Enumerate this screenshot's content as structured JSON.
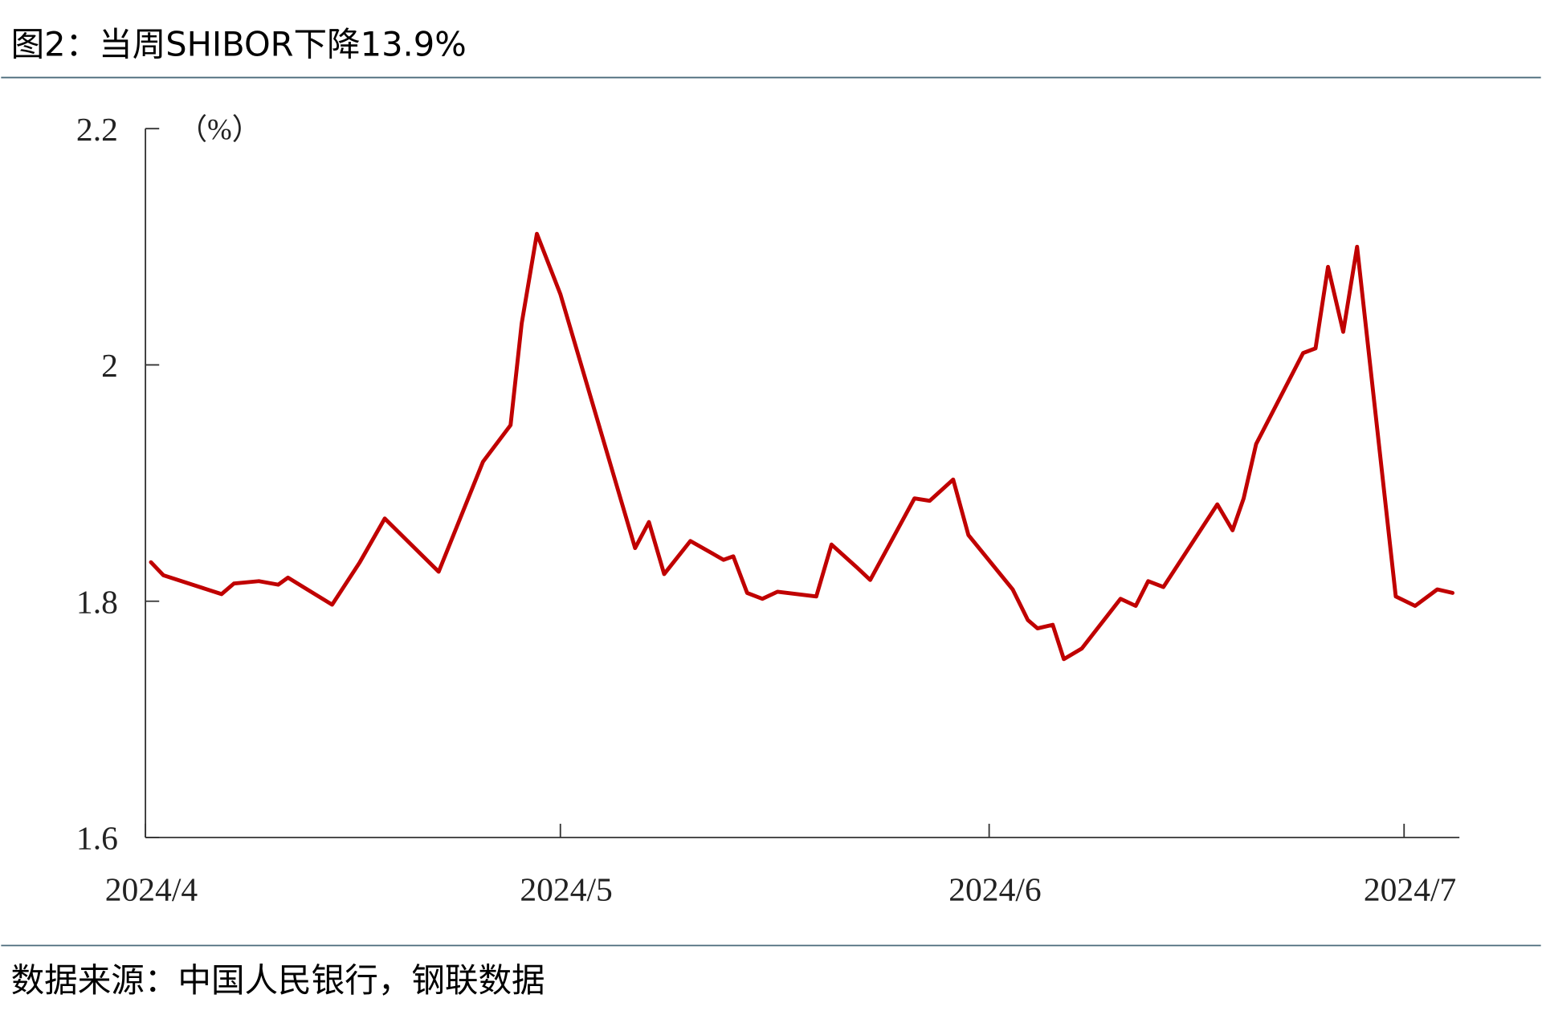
{
  "chart_data": {
    "type": "line",
    "title": "图2：当周SHIBOR下降13.9%",
    "y_label": "（%）",
    "source": "数据来源：中国人民银行，钢联数据",
    "xlim": [
      0,
      95
    ],
    "xticks": [
      {
        "value": 0,
        "label": "2024/4"
      },
      {
        "value": 30,
        "label": "2024/5"
      },
      {
        "value": 61,
        "label": "2024/6"
      },
      {
        "value": 91,
        "label": "2024/7"
      }
    ],
    "ylim": [
      1.6,
      2.2
    ],
    "yticks": [
      1.6,
      1.8,
      2,
      2.2
    ],
    "x": [
      0.4,
      1.3,
      5.5,
      6.4,
      8.2,
      9.6,
      10.3,
      13.5,
      15.5,
      17.3,
      21.2,
      24.4,
      26.4,
      27.2,
      28.3,
      30.0,
      35.4,
      36.4,
      37.5,
      39.4,
      41.8,
      42.5,
      43.5,
      44.6,
      45.7,
      48.5,
      49.6,
      51.4,
      52.4,
      55.6,
      56.7,
      58.4,
      59.5,
      62.7,
      63.8,
      64.5,
      65.6,
      66.4,
      67.7,
      70.5,
      71.6,
      72.5,
      73.6,
      77.5,
      78.6,
      79.4,
      80.3,
      83.7,
      84.6,
      85.5,
      86.6,
      87.6,
      90.4,
      91.8,
      93.4,
      94.5
    ],
    "series": [
      {
        "name": "SHIBOR",
        "color": "#c00000",
        "values": [
          1.833,
          1.822,
          1.806,
          1.815,
          1.817,
          1.814,
          1.82,
          1.797,
          1.833,
          1.87,
          1.825,
          1.918,
          1.949,
          2.035,
          2.111,
          2.06,
          1.845,
          1.867,
          1.823,
          1.851,
          1.835,
          1.838,
          1.807,
          1.802,
          1.808,
          1.804,
          1.848,
          1.829,
          1.818,
          1.887,
          1.885,
          1.903,
          1.856,
          1.81,
          1.784,
          1.777,
          1.78,
          1.751,
          1.76,
          1.802,
          1.796,
          1.817,
          1.812,
          1.882,
          1.86,
          1.887,
          1.933,
          2.01,
          2.014,
          2.083,
          2.028,
          2.1,
          1.804,
          1.796,
          1.81,
          1.807
        ]
      }
    ]
  }
}
